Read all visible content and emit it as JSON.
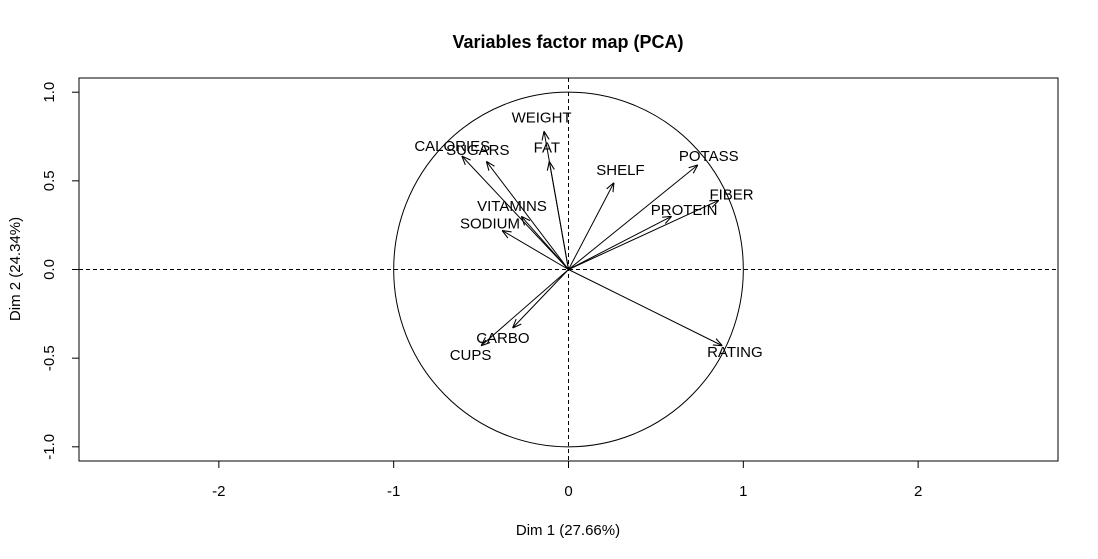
{
  "chart_data": {
    "type": "pca-variables-map",
    "title": "Variables factor map (PCA)",
    "xlabel": "Dim 1 (27.66%)",
    "ylabel": "Dim 2 (24.34%)",
    "xlim": [
      -2.8,
      2.8
    ],
    "ylim": [
      -1.08,
      1.08
    ],
    "x_ticks": [
      -2,
      -1,
      0,
      1,
      2
    ],
    "y_ticks": [
      -1.0,
      -0.5,
      0.0,
      0.5,
      1.0
    ],
    "x_tick_labels": [
      "-2",
      "-1",
      "0",
      "1",
      "2"
    ],
    "y_tick_labels": [
      "-1.0",
      "-0.5",
      "0.0",
      "0.5",
      "1.0"
    ],
    "correlation_circle_radius": 1,
    "reference_lines": "dashed at x=0 and y=0",
    "variables": [
      {
        "name": "WEIGHT",
        "x": -0.14,
        "y": 0.78
      },
      {
        "name": "FAT",
        "x": -0.11,
        "y": 0.61
      },
      {
        "name": "CALORIES",
        "x": -0.61,
        "y": 0.64
      },
      {
        "name": "SUGARS",
        "x": -0.47,
        "y": 0.61
      },
      {
        "name": "SHELF",
        "x": 0.26,
        "y": 0.49
      },
      {
        "name": "POTASS",
        "x": 0.74,
        "y": 0.59
      },
      {
        "name": "FIBER",
        "x": 0.86,
        "y": 0.39
      },
      {
        "name": "PROTEIN",
        "x": 0.59,
        "y": 0.3
      },
      {
        "name": "VITAMINS",
        "x": -0.27,
        "y": 0.3
      },
      {
        "name": "SODIUM",
        "x": -0.38,
        "y": 0.22
      },
      {
        "name": "CARBO",
        "x": -0.32,
        "y": -0.33
      },
      {
        "name": "CUPS",
        "x": -0.5,
        "y": -0.43
      },
      {
        "name": "RATING",
        "x": 0.88,
        "y": -0.43
      }
    ]
  }
}
